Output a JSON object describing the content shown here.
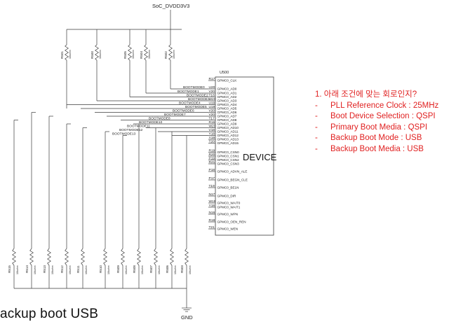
{
  "power_net": "SoC_DVDD3V3",
  "ground_net": "GND",
  "device": {
    "ref": "U500",
    "name": "DEVICE"
  },
  "device_pins": [
    {
      "num": "R17",
      "name": "GPMC0_CLK"
    },
    {
      "num": "U20",
      "name": "GPMC0_AD0"
    },
    {
      "num": "V20",
      "name": "GPMC0_AD1"
    },
    {
      "num": "T18",
      "name": "GPMC0_AD2"
    },
    {
      "num": "W20",
      "name": "GPMC0_AD3"
    },
    {
      "num": "U19",
      "name": "GPMC0_AD4"
    },
    {
      "num": "U19",
      "name": "GPMC0_AD5"
    },
    {
      "num": "V20",
      "name": "GPMC0_AD6"
    },
    {
      "num": "V20",
      "name": "GPMC0_AD7"
    },
    {
      "num": "T17",
      "name": "GPMC0_AD8"
    },
    {
      "num": "R16",
      "name": "GPMC0_AD9"
    },
    {
      "num": "W20",
      "name": "GPMC0_AD10"
    },
    {
      "num": "V18",
      "name": "GPMC0_AD11"
    },
    {
      "num": "Y18",
      "name": "GPMC0_AD12"
    },
    {
      "num": "Y19",
      "name": "GPMC0_AD13"
    },
    {
      "num": "T20",
      "name": "GPMC0_AD15"
    },
    {
      "num": "R19",
      "name": "GPMC0_CSN0"
    },
    {
      "num": "R20",
      "name": "GPMC0_CSN1"
    },
    {
      "num": "P19",
      "name": "GPMC0_CSN2"
    },
    {
      "num": "R21",
      "name": "GPMC0_CSN3"
    },
    {
      "num": "P18",
      "name": "GPMC0_ADVN_ALE"
    },
    {
      "num": "P17",
      "name": "GPMC0_BEGN_CLE"
    },
    {
      "num": "T19",
      "name": "GPMC0_BE1N"
    },
    {
      "num": "N17",
      "name": "GPMC0_DIR"
    },
    {
      "num": "W19",
      "name": "GPMC0_WAIT0"
    },
    {
      "num": "Y18",
      "name": "GPMC0_WAIT1"
    },
    {
      "num": "N16",
      "name": "GPMC0_WPN"
    },
    {
      "num": "R18",
      "name": "GPMC0_OEN_REN"
    },
    {
      "num": "T21",
      "name": "GPMC0_WEN"
    }
  ],
  "boot_nets": [
    "BOOTMODE0",
    "BOOTMODE1",
    "BOOTMODE2",
    "BOOTMODE3",
    "BOOTMODE4",
    "BOOTMODE5",
    "BOOTMODE6",
    "BOOTMODE7",
    "BOOTMODE8",
    "BOOTMODE10",
    "BOOTMODE11",
    "BOOTMODE12",
    "BOOTMODE13"
  ],
  "pullup_resistors": [
    {
      "ref": "R501",
      "value": "10kohm"
    },
    {
      "ref": "R500",
      "value": "10kohm"
    },
    {
      "ref": "R505",
      "value": "10kohm"
    },
    {
      "ref": "R504",
      "value": "10kohm"
    },
    {
      "ref": "R502",
      "value": "10kohm"
    }
  ],
  "pulldown_resistors": [
    {
      "ref": "R515",
      "value": "10kohm"
    },
    {
      "ref": "R514",
      "value": "10kohm"
    },
    {
      "ref": "R513",
      "value": "10kohm"
    },
    {
      "ref": "R512",
      "value": "10kohm"
    },
    {
      "ref": "R511",
      "value": "10kohm"
    },
    {
      "ref": "R510",
      "value": "10kohm"
    },
    {
      "ref": "R509",
      "value": "10kohm"
    },
    {
      "ref": "R508",
      "value": "10kohm"
    },
    {
      "ref": "R507",
      "value": "10kohm"
    },
    {
      "ref": "R506",
      "value": "10kohm"
    },
    {
      "ref": "R503",
      "value": "10kohm"
    }
  ],
  "notes": {
    "heading": "1. 아래 조건에 맞는 회로인지?",
    "items": [
      "PLL Reference Clock : 25MHz",
      "Boot Device Selection : QSPI",
      "Primary Boot Media : QSPI",
      "Backup Boot Mode : USB",
      "Backup Boot Media : USB"
    ],
    "bullet": "-"
  },
  "bottom_caption": "ackup boot USB"
}
